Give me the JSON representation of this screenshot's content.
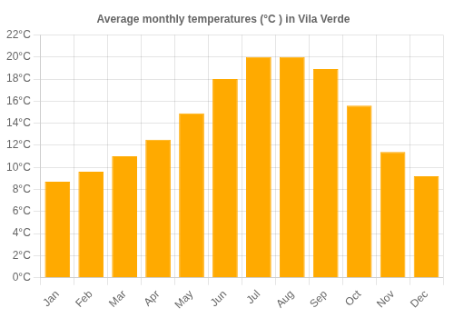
{
  "chart_data": {
    "type": "bar",
    "title": "Average monthly temperatures (°C ) in Vila Verde",
    "categories": [
      "Jan",
      "Feb",
      "Mar",
      "Apr",
      "May",
      "Jun",
      "Jul",
      "Aug",
      "Sep",
      "Oct",
      "Nov",
      "Dec"
    ],
    "values": [
      8.7,
      9.6,
      11.0,
      12.5,
      14.9,
      18.0,
      20.0,
      20.0,
      18.9,
      15.6,
      11.4,
      9.2
    ],
    "color": "#FFAA00",
    "ylim": [
      0,
      22
    ],
    "yticks": [
      {
        "value": 0,
        "label": "0°C"
      },
      {
        "value": 2,
        "label": "2°C"
      },
      {
        "value": 4,
        "label": "4°C"
      },
      {
        "value": 6,
        "label": "6°C"
      },
      {
        "value": 8,
        "label": "8°C"
      },
      {
        "value": 10,
        "label": "10°C"
      },
      {
        "value": 12,
        "label": "12°C"
      },
      {
        "value": 14,
        "label": "14°C"
      },
      {
        "value": 16,
        "label": "16°C"
      },
      {
        "value": 18,
        "label": "18°C"
      },
      {
        "value": 20,
        "label": "20°C"
      },
      {
        "value": 22,
        "label": "22°C"
      }
    ],
    "grid": true
  }
}
